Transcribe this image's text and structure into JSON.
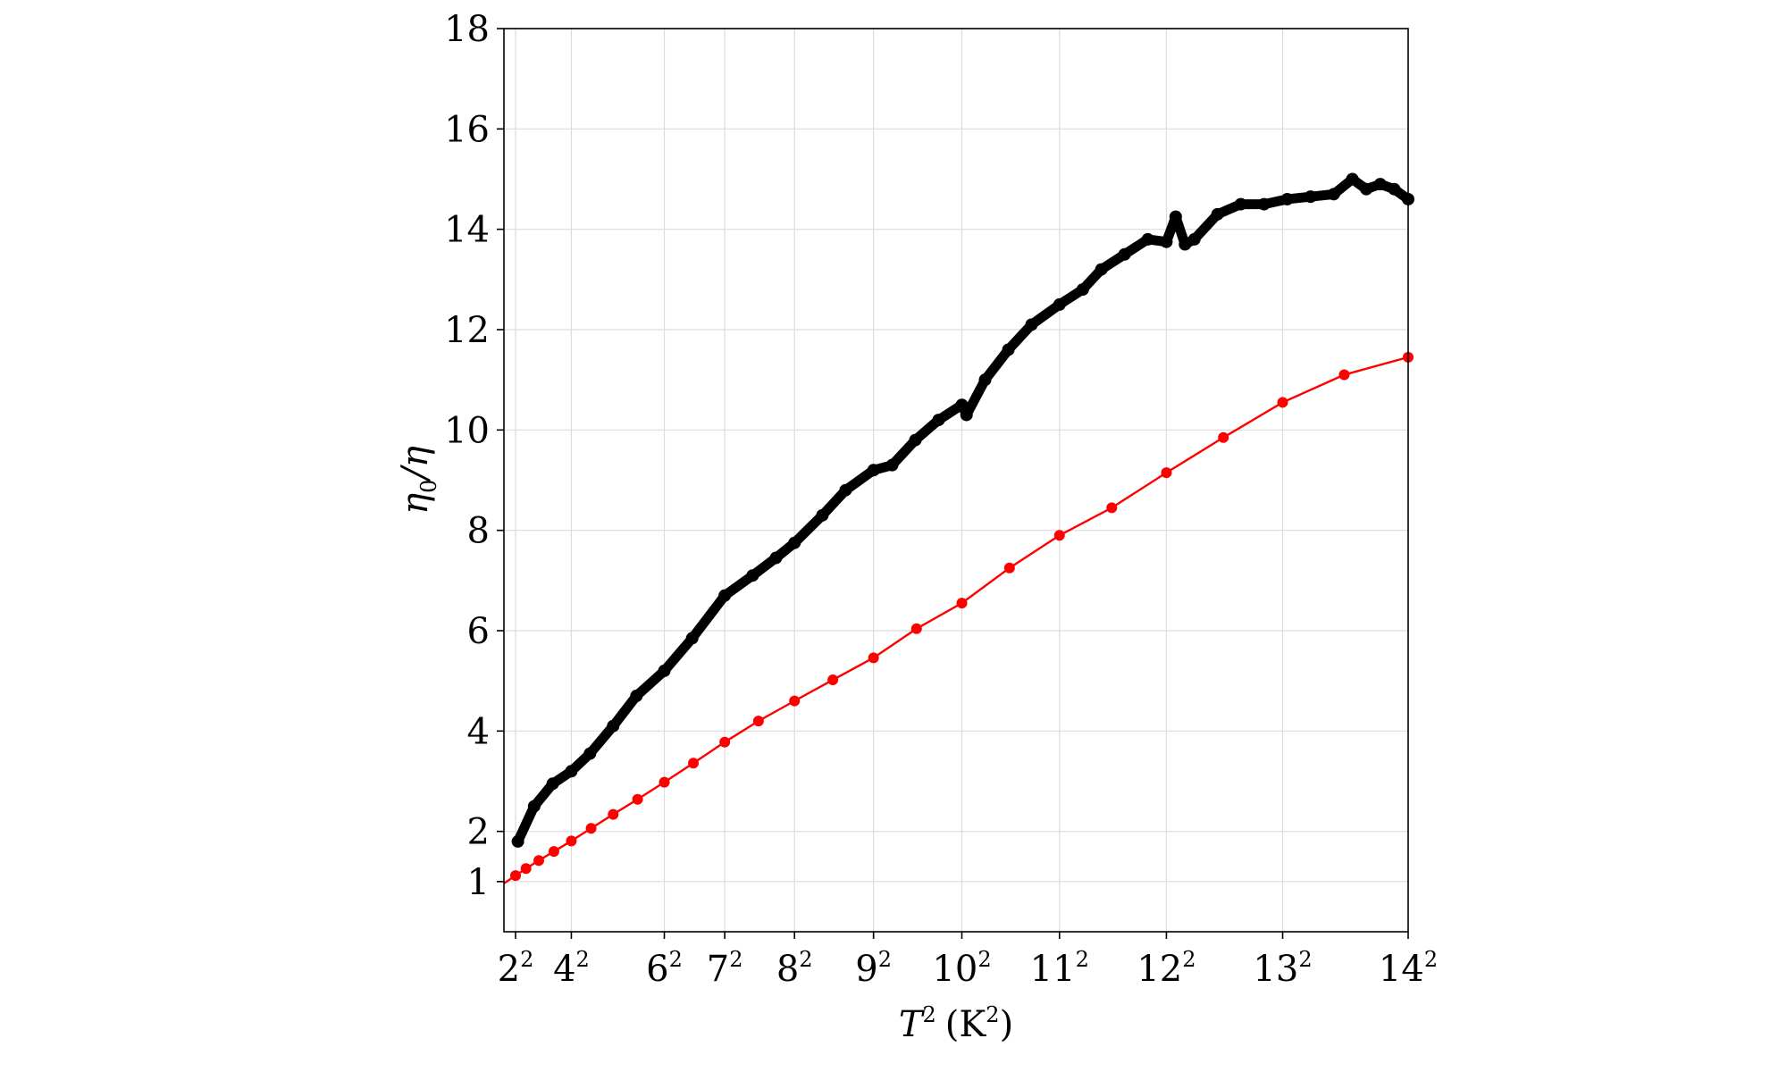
{
  "chart_data": {
    "type": "line",
    "xlabel_base": "T",
    "xlabel_exp": "2",
    "xlabel_unit": "(K",
    "xlabel_unit_exp": "2",
    "xlabel_close": ")",
    "ylabel": "η0/η",
    "ylabel_main": "η",
    "ylabel_sub": "0",
    "ylabel_rest": "/η",
    "xlim": [
      1.5,
      196
    ],
    "ylim": [
      0,
      18
    ],
    "grid": true,
    "x_ticks": [
      {
        "value": 4,
        "base": "2",
        "exp": "2"
      },
      {
        "value": 16,
        "base": "4",
        "exp": "2"
      },
      {
        "value": 36,
        "base": "6",
        "exp": "2"
      },
      {
        "value": 49,
        "base": "7",
        "exp": "2"
      },
      {
        "value": 64,
        "base": "8",
        "exp": "2"
      },
      {
        "value": 81,
        "base": "9",
        "exp": "2"
      },
      {
        "value": 100,
        "base": "10",
        "exp": "2"
      },
      {
        "value": 121,
        "base": "11",
        "exp": "2"
      },
      {
        "value": 144,
        "base": "12",
        "exp": "2"
      },
      {
        "value": 169,
        "base": "13",
        "exp": "2"
      },
      {
        "value": 196,
        "base": "14",
        "exp": "2"
      }
    ],
    "y_ticks": [
      {
        "value": 1,
        "label": "1"
      },
      {
        "value": 2,
        "label": "2"
      },
      {
        "value": 4,
        "label": "4"
      },
      {
        "value": 6,
        "label": "6"
      },
      {
        "value": 8,
        "label": "8"
      },
      {
        "value": 10,
        "label": "10"
      },
      {
        "value": 12,
        "label": "12"
      },
      {
        "value": 14,
        "label": "14"
      },
      {
        "value": 16,
        "label": "16"
      },
      {
        "value": 18,
        "label": "18"
      }
    ],
    "series": [
      {
        "color": "#000000",
        "style": "scatter-thick",
        "x": [
          4.5,
          8,
          12,
          16,
          20,
          25,
          30,
          36,
          42,
          49,
          55,
          60,
          64,
          70,
          75,
          81,
          85,
          90,
          95,
          100,
          101,
          105,
          110,
          115,
          121,
          126,
          130,
          135,
          140,
          144,
          146,
          148,
          150,
          155,
          160,
          165,
          170,
          175,
          180,
          184,
          187,
          190,
          193,
          196
        ],
        "y": [
          1.8,
          2.5,
          2.95,
          3.2,
          3.55,
          4.1,
          4.7,
          5.2,
          5.85,
          6.7,
          7.1,
          7.45,
          7.75,
          8.3,
          8.8,
          9.2,
          9.3,
          9.8,
          10.2,
          10.5,
          10.3,
          11.0,
          11.6,
          12.1,
          12.5,
          12.8,
          13.2,
          13.5,
          13.8,
          13.75,
          14.25,
          13.7,
          13.8,
          14.3,
          14.5,
          14.5,
          14.6,
          14.65,
          14.7,
          15.0,
          14.8,
          14.9,
          14.8,
          14.6
        ]
      },
      {
        "color": "#ff0000",
        "style": "line-markers",
        "x": [
          4,
          6.25,
          9,
          12.25,
          16,
          20.25,
          25,
          30.25,
          36,
          42.25,
          49,
          56.25,
          64,
          72.25,
          81,
          90.25,
          100,
          110.25,
          121,
          132.25,
          144,
          156.25,
          169,
          182.25,
          196
        ],
        "y": [
          1.12,
          1.26,
          1.42,
          1.6,
          1.81,
          2.06,
          2.34,
          2.64,
          2.98,
          3.36,
          3.78,
          4.2,
          4.6,
          5.02,
          5.46,
          6.04,
          6.55,
          7.25,
          7.9,
          8.45,
          9.15,
          9.85,
          10.55,
          11.1,
          11.45
        ]
      }
    ]
  }
}
